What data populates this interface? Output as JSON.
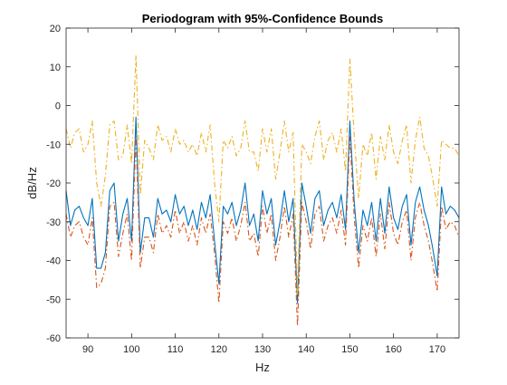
{
  "chart_data": {
    "type": "line",
    "title": "Periodogram with 95%-Confidence Bounds",
    "xlabel": "Hz",
    "ylabel": "dB/Hz",
    "xlim": [
      85,
      175
    ],
    "ylim": [
      -60,
      20
    ],
    "x_ticks": [
      90,
      100,
      110,
      120,
      130,
      140,
      150,
      160,
      170
    ],
    "y_ticks": [
      20,
      10,
      0,
      -10,
      -20,
      -30,
      -40,
      -50,
      -60
    ],
    "grid": false,
    "x": [
      85,
      86,
      87,
      88,
      89,
      90,
      91,
      92,
      93,
      94,
      95,
      96,
      97,
      98,
      99,
      100,
      101,
      102,
      103,
      104,
      105,
      106,
      107,
      108,
      109,
      110,
      111,
      112,
      113,
      114,
      115,
      116,
      117,
      118,
      119,
      120,
      121,
      122,
      123,
      124,
      125,
      126,
      127,
      128,
      129,
      130,
      131,
      132,
      133,
      134,
      135,
      136,
      137,
      138,
      139,
      140,
      141,
      142,
      143,
      144,
      145,
      146,
      147,
      148,
      149,
      150,
      151,
      152,
      153,
      154,
      155,
      156,
      157,
      158,
      159,
      160,
      161,
      162,
      163,
      164,
      165,
      166,
      167,
      168,
      169,
      170,
      171,
      172,
      173,
      174,
      175
    ],
    "series": [
      {
        "role": "periodogram",
        "color": "#0072BD",
        "dash": "solid",
        "values": [
          -22,
          -31,
          -27,
          -26,
          -29,
          -31,
          -24,
          -42,
          -42,
          -38,
          -22,
          -20,
          -35,
          -28,
          -24,
          -35,
          -3,
          -38,
          -29,
          -29,
          -34,
          -24,
          -28,
          -27,
          -30,
          -23,
          -28,
          -26,
          -31,
          -27,
          -32,
          -25,
          -29,
          -23,
          -35,
          -46,
          -26,
          -28,
          -25,
          -31,
          -27,
          -20,
          -31,
          -28,
          -35,
          -22,
          -28,
          -24,
          -36,
          -30,
          -22,
          -30,
          -24,
          -51,
          -20,
          -26,
          -33,
          -24,
          -22,
          -31,
          -27,
          -25,
          -29,
          -23,
          -32,
          -4,
          -25,
          -38,
          -27,
          -31,
          -25,
          -35,
          -24,
          -33,
          -21,
          -29,
          -32,
          -26,
          -23,
          -36,
          -25,
          -21,
          -27,
          -31,
          -37,
          -44,
          -21,
          -28,
          -26,
          -27,
          -29
        ]
      },
      {
        "role": "upper-bound",
        "color": "#EDB120",
        "dash": "dashdot",
        "values": [
          -6,
          -11,
          -7,
          -6,
          -12,
          -10,
          -4,
          -20,
          -26,
          -18,
          -5,
          -4,
          -14,
          -13,
          -5,
          -15,
          13,
          -23,
          -9,
          -11,
          -14,
          -5,
          -9,
          -8,
          -12,
          -6,
          -10,
          -9,
          -12,
          -10,
          -13,
          -7,
          -12,
          -5,
          -20,
          -30,
          -9,
          -11,
          -8,
          -13,
          -11,
          -4,
          -12,
          -12,
          -17,
          -6,
          -12,
          -6,
          -19,
          -12,
          -4,
          -12,
          -7,
          -49,
          -10,
          -12,
          -15,
          -8,
          -4,
          -14,
          -9,
          -7,
          -12,
          -6,
          -17,
          12,
          -8,
          -24,
          -10,
          -13,
          -7,
          -19,
          -8,
          -14,
          -5,
          -12,
          -15,
          -9,
          -5,
          -20,
          -9,
          -3,
          -11,
          -13,
          -19,
          -26,
          -9,
          -10,
          -11,
          -11,
          -13
        ]
      },
      {
        "role": "lower-bound",
        "color": "#D95319",
        "dash": "dashdot",
        "values": [
          -28,
          -34,
          -31,
          -30,
          -34,
          -36,
          -29,
          -47,
          -46,
          -42,
          -26,
          -25,
          -39,
          -33,
          -28,
          -40,
          -8,
          -42,
          -34,
          -34,
          -38,
          -28,
          -33,
          -31,
          -34,
          -27,
          -33,
          -30,
          -35,
          -31,
          -36,
          -29,
          -33,
          -28,
          -38,
          -51,
          -30,
          -33,
          -29,
          -35,
          -31,
          -25,
          -35,
          -33,
          -39,
          -26,
          -33,
          -28,
          -40,
          -34,
          -26,
          -34,
          -28,
          -57,
          -25,
          -30,
          -37,
          -28,
          -26,
          -35,
          -31,
          -29,
          -33,
          -27,
          -36,
          -8,
          -29,
          -42,
          -31,
          -35,
          -29,
          -39,
          -28,
          -37,
          -25,
          -33,
          -36,
          -30,
          -27,
          -40,
          -29,
          -25,
          -31,
          -35,
          -41,
          -48,
          -26,
          -32,
          -30,
          -31,
          -34
        ]
      }
    ]
  }
}
